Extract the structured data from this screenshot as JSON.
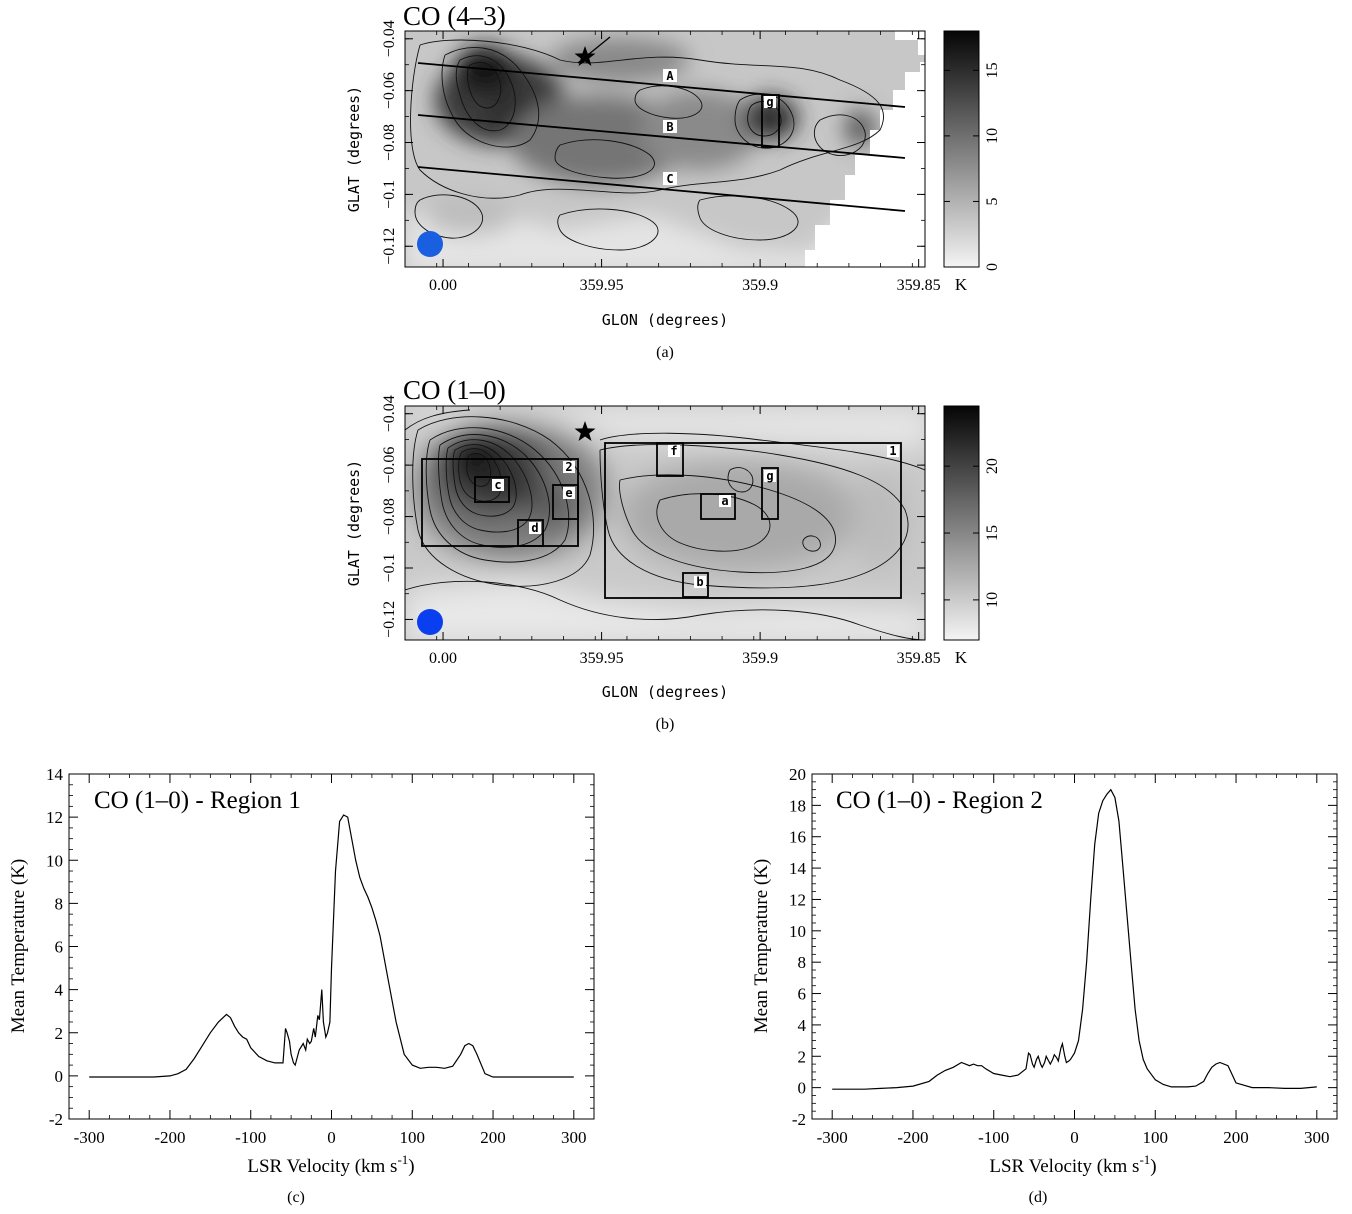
{
  "colors": {
    "ink": "#000000",
    "beam_a": "#1a5fe0",
    "beam_b": "#0a3ff0",
    "map_light": "#efefef",
    "map_dark": "#0a0a0a"
  },
  "icons": {
    "star": "star-icon",
    "beam": "beam-circle-icon"
  },
  "panel_a": {
    "caption": "(a)",
    "chart_data": {
      "type": "heatmap",
      "title": "CO (4–3)",
      "xlabel": "GLON (degrees)",
      "ylabel": "GLAT (degrees)",
      "xlim": [
        0.012,
        359.848
      ],
      "ylim": [
        -0.128,
        -0.037
      ],
      "xticks": [
        "0.00",
        "359.95",
        "359.9",
        "359.85"
      ],
      "yticks": [
        "−0.12",
        "−0.1",
        "−0.08",
        "−0.06",
        "−0.04"
      ],
      "colorbar": {
        "ticks": [
          "0",
          "5",
          "10",
          "15"
        ],
        "range": [
          0,
          18
        ],
        "unit": "K"
      },
      "cuts": [
        {
          "label": "A"
        },
        {
          "label": "B"
        },
        {
          "label": "C"
        }
      ],
      "boxes": [
        {
          "label": "g"
        }
      ]
    }
  },
  "panel_b": {
    "caption": "(b)",
    "chart_data": {
      "type": "heatmap",
      "title": "CO (1–0)",
      "xlabel": "GLON (degrees)",
      "ylabel": "GLAT (degrees)",
      "xlim": [
        0.012,
        359.848
      ],
      "ylim": [
        -0.128,
        -0.037
      ],
      "xticks": [
        "0.00",
        "359.95",
        "359.9",
        "359.85"
      ],
      "yticks": [
        "−0.12",
        "−0.1",
        "−0.08",
        "−0.06",
        "−0.04"
      ],
      "colorbar": {
        "ticks": [
          "10",
          "15",
          "20"
        ],
        "range": [
          7,
          24.5
        ],
        "unit": "K"
      },
      "boxes": [
        {
          "label": "1"
        },
        {
          "label": "2"
        },
        {
          "label": "a"
        },
        {
          "label": "b"
        },
        {
          "label": "c"
        },
        {
          "label": "d"
        },
        {
          "label": "e"
        },
        {
          "label": "f"
        },
        {
          "label": "g"
        }
      ]
    }
  },
  "panel_c": {
    "caption": "(c)",
    "chart_data": {
      "type": "line",
      "title": "CO (1–0) - Region 1",
      "xlabel": "LSR Velocity (km s",
      "xlabel_sup": "-1",
      "xlabel_end": ")",
      "ylabel": "Mean Temperature (K)",
      "xlim": [
        -325,
        325
      ],
      "ylim": [
        -2,
        14
      ],
      "xticks": [
        "-300",
        "-200",
        "-100",
        "0",
        "100",
        "200",
        "300"
      ],
      "yticks": [
        "-2",
        "0",
        "2",
        "4",
        "6",
        "8",
        "10",
        "12",
        "14"
      ],
      "series": [
        {
          "x": [
            -300,
            -280,
            -260,
            -240,
            -220,
            -200,
            -190,
            -180,
            -170,
            -160,
            -150,
            -140,
            -130,
            -125,
            -120,
            -115,
            -110,
            -105,
            -100,
            -90,
            -80,
            -70,
            -60,
            -57,
            -55,
            -52,
            -50,
            -47,
            -45,
            -40,
            -35,
            -32,
            -30,
            -27,
            -25,
            -22,
            -20,
            -17,
            -15,
            -12,
            -10,
            -7,
            -5,
            -2,
            0,
            5,
            10,
            15,
            20,
            25,
            30,
            35,
            40,
            45,
            50,
            55,
            60,
            70,
            80,
            90,
            100,
            110,
            120,
            130,
            140,
            150,
            160,
            165,
            170,
            175,
            180,
            190,
            200,
            220,
            240,
            260,
            280,
            300
          ],
          "y": [
            -0.05,
            -0.05,
            -0.05,
            -0.05,
            -0.05,
            0,
            0.1,
            0.3,
            0.8,
            1.4,
            2,
            2.5,
            2.85,
            2.7,
            2.3,
            2.0,
            1.8,
            1.7,
            1.3,
            0.9,
            0.7,
            0.6,
            0.6,
            2.2,
            2.0,
            1.6,
            1.0,
            0.6,
            0.5,
            1.2,
            1.5,
            1.2,
            1.7,
            1.5,
            1.6,
            2.2,
            1.8,
            2.8,
            2.6,
            4.0,
            2.5,
            1.8,
            2.0,
            2.5,
            5.0,
            9.5,
            11.8,
            12.1,
            12,
            11,
            10,
            9.2,
            8.7,
            8.3,
            7.8,
            7.2,
            6.5,
            4.5,
            2.5,
            1.0,
            0.5,
            0.35,
            0.4,
            0.4,
            0.35,
            0.45,
            1.0,
            1.4,
            1.5,
            1.4,
            1.0,
            0.1,
            -0.05,
            -0.05,
            -0.05,
            -0.05,
            -0.05,
            -0.05
          ]
        }
      ]
    }
  },
  "panel_d": {
    "caption": "(d)",
    "chart_data": {
      "type": "line",
      "title": "CO (1–0) - Region 2",
      "xlabel": "LSR Velocity (km s",
      "xlabel_sup": "-1",
      "xlabel_end": ")",
      "ylabel": "Mean Temperature (K)",
      "xlim": [
        -325,
        325
      ],
      "ylim": [
        -2,
        20
      ],
      "xticks": [
        "-300",
        "-200",
        "-100",
        "0",
        "100",
        "200",
        "300"
      ],
      "yticks": [
        "-2",
        "0",
        "2",
        "4",
        "6",
        "8",
        "10",
        "12",
        "14",
        "16",
        "18",
        "20"
      ],
      "series": [
        {
          "x": [
            -300,
            -280,
            -260,
            -240,
            -220,
            -200,
            -180,
            -170,
            -160,
            -150,
            -140,
            -135,
            -130,
            -125,
            -120,
            -115,
            -110,
            -100,
            -90,
            -80,
            -70,
            -60,
            -57,
            -55,
            -52,
            -50,
            -47,
            -45,
            -42,
            -40,
            -37,
            -35,
            -30,
            -27,
            -25,
            -22,
            -20,
            -17,
            -15,
            -12,
            -10,
            -7,
            -5,
            0,
            5,
            10,
            15,
            20,
            25,
            30,
            35,
            40,
            45,
            50,
            55,
            60,
            65,
            70,
            75,
            80,
            85,
            90,
            100,
            110,
            120,
            130,
            140,
            150,
            160,
            165,
            170,
            175,
            180,
            190,
            200,
            220,
            240,
            260,
            280,
            300
          ],
          "y": [
            -0.1,
            -0.1,
            -0.1,
            -0.05,
            0,
            0.1,
            0.4,
            0.8,
            1.1,
            1.3,
            1.6,
            1.5,
            1.4,
            1.5,
            1.4,
            1.4,
            1.2,
            0.9,
            0.8,
            0.7,
            0.8,
            1.2,
            2.2,
            2.1,
            1.5,
            1.3,
            1.8,
            2.0,
            1.5,
            1.3,
            1.6,
            2.0,
            1.5,
            1.8,
            2.1,
            1.9,
            1.7,
            2.5,
            2.8,
            2.0,
            1.6,
            1.7,
            1.8,
            2.2,
            3.0,
            5,
            8,
            12,
            15.5,
            17.5,
            18.3,
            18.7,
            19,
            18.5,
            17,
            14,
            11,
            8,
            5,
            3,
            1.8,
            1.2,
            0.5,
            0.2,
            0.05,
            0.05,
            0.05,
            0.1,
            0.4,
            0.9,
            1.3,
            1.5,
            1.6,
            1.4,
            0.3,
            0,
            0,
            -0.05,
            -0.05,
            0.05
          ]
        }
      ]
    }
  }
}
